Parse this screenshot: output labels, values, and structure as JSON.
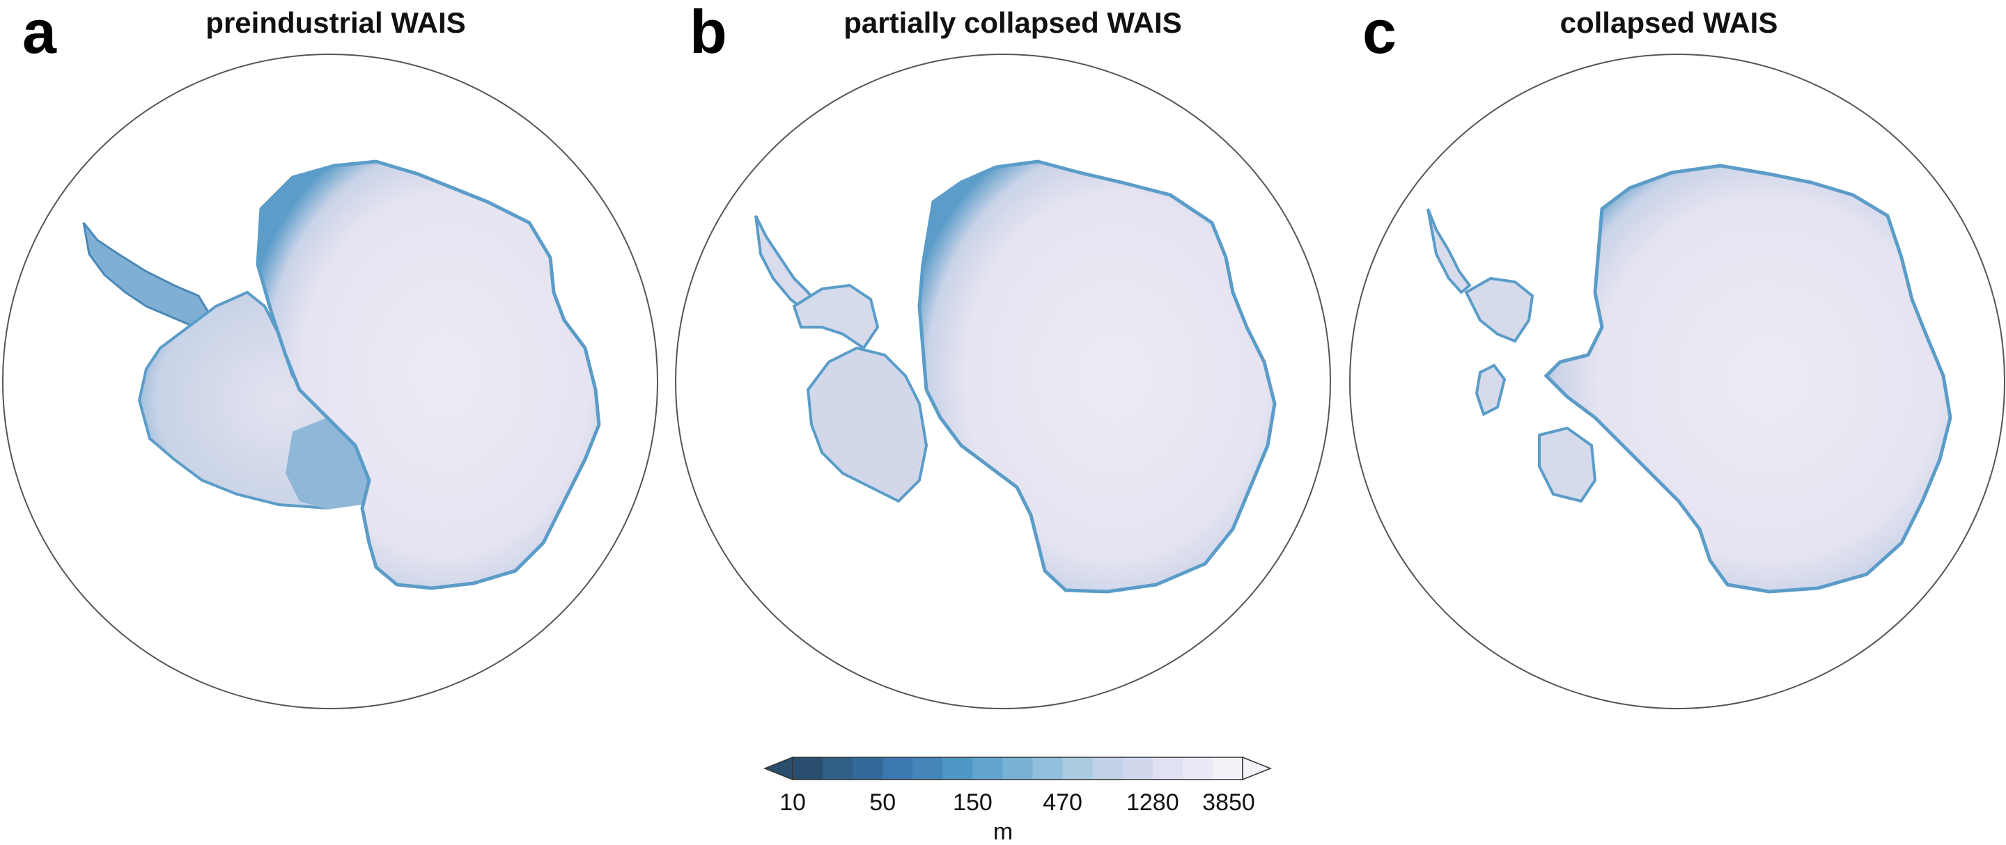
{
  "panels": [
    {
      "letter": "a",
      "title": "preindustrial WAIS"
    },
    {
      "letter": "b",
      "title": "partially collapsed WAIS"
    },
    {
      "letter": "c",
      "title": "collapsed WAIS"
    }
  ],
  "colorbar": {
    "tick_labels": [
      "10",
      "50",
      "150",
      "470",
      "1280",
      "3850"
    ],
    "unit": "m",
    "colors": [
      "#2a4e6e",
      "#2f5f86",
      "#33699a",
      "#3a78b0",
      "#4486ba",
      "#4f97c6",
      "#62a5cf",
      "#79b2d6",
      "#91bfdc",
      "#abcbe1",
      "#c1d2e8",
      "#d2d7ee",
      "#e0e1f2",
      "#ebe9f5",
      "#f4f1f8"
    ]
  },
  "colors": {
    "outline": "#555555",
    "ice_interior": "#eeebf4",
    "ice_mid": "#d6dcec",
    "ice_coast": "#5b9cc8",
    "ice_shelf": "#8cb6d7"
  }
}
